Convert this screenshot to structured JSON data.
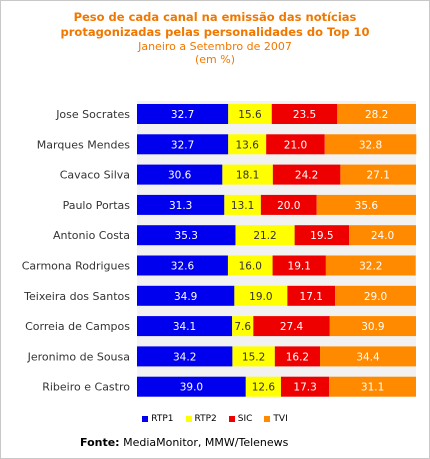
{
  "chart_data": {
    "type": "bar",
    "orientation": "horizontal",
    "stacked": true,
    "title_lines": [
      "Peso de cada canal na emissão das notícias",
      "protagonizadas pelas personalidades do Top 10"
    ],
    "subtitle_lines": [
      "Janeiro a Setembro de 2007",
      "(em %)"
    ],
    "categories": [
      "Jose Socrates",
      "Marques Mendes",
      "Cavaco Silva",
      "Paulo Portas",
      "Antonio Costa",
      "Carmona Rodrigues",
      "Teixeira dos Santos",
      "Correia de Campos",
      "Jeronimo de Sousa",
      "Ribeiro e Castro"
    ],
    "series": [
      {
        "name": "RTP1",
        "color": "#0000ee",
        "values": [
          32.7,
          32.7,
          30.6,
          31.3,
          35.3,
          32.6,
          34.9,
          34.1,
          34.2,
          39.0
        ]
      },
      {
        "name": "RTP2",
        "color": "#ffff00",
        "values": [
          15.6,
          13.6,
          18.1,
          13.1,
          21.2,
          16.0,
          19.0,
          7.6,
          15.2,
          12.6
        ]
      },
      {
        "name": "SIC",
        "color": "#ee0000",
        "values": [
          23.5,
          21.0,
          24.2,
          20.0,
          19.5,
          19.1,
          17.1,
          27.4,
          16.2,
          17.3
        ]
      },
      {
        "name": "TVI",
        "color": "#ff8a00",
        "values": [
          28.2,
          32.8,
          27.1,
          35.6,
          24.0,
          32.2,
          29.0,
          30.9,
          34.4,
          31.1
        ]
      }
    ],
    "value_labels": [
      [
        "32.7",
        "15.6",
        "23.5",
        "28.2"
      ],
      [
        "32.7",
        "13.6",
        "21.0",
        "32.8"
      ],
      [
        "30.6",
        "18.1",
        "24.2",
        "27.1"
      ],
      [
        "31.3",
        "13.1",
        "20.0",
        "35.6"
      ],
      [
        "35.3",
        "21.2",
        "19.5",
        "24.0"
      ],
      [
        "32.6",
        "16.0",
        "19.1",
        "32.2"
      ],
      [
        "34.9",
        "19.0",
        "17.1",
        "29.0"
      ],
      [
        "34.1",
        "7.6",
        "27.4",
        "30.9"
      ],
      [
        "34.2",
        "15.2",
        "16.2",
        "34.4"
      ],
      [
        "39.0",
        "12.6",
        "17.3",
        "31.1"
      ]
    ],
    "xlim": [
      0,
      100
    ],
    "legend_position": "bottom",
    "grid": false
  },
  "source": {
    "label": "Fonte:",
    "text": " MediaMonitor, MMW/Telenews"
  },
  "colors": {
    "title": "#f07800",
    "plot_background": "#f2f2f2"
  }
}
